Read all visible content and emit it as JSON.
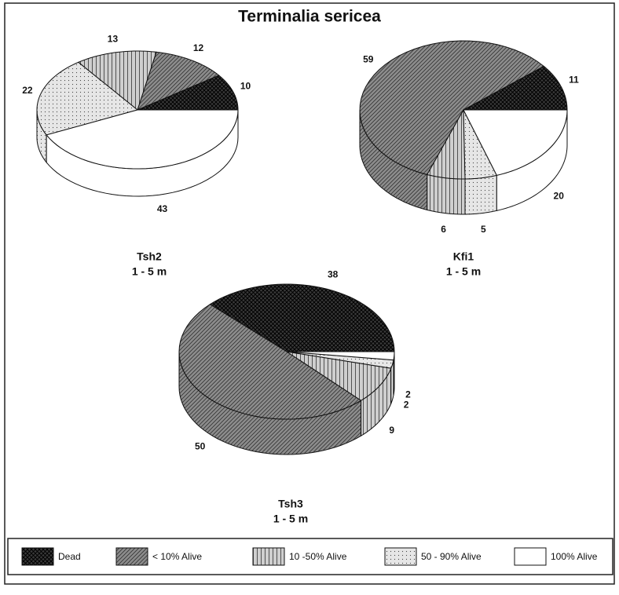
{
  "title": "Terminalia sericea",
  "legend": [
    "Dead",
    "< 10% Alive",
    "10 -50% Alive",
    "50 - 90% Alive",
    "100% Alive"
  ],
  "colors": [
    "#3a3a3a",
    "#8c8c8c",
    "#cfcfcf",
    "#e6e6e6",
    "#ffffff"
  ],
  "chart_data": [
    {
      "type": "pie",
      "title": "Tsh2",
      "subtitle": "1 - 5 m",
      "values": [
        10,
        12,
        13,
        22,
        43
      ]
    },
    {
      "type": "pie",
      "title": "Kfi1",
      "subtitle": "1 - 5 m",
      "values": [
        11,
        59,
        6,
        5,
        20
      ]
    },
    {
      "type": "pie",
      "title": "Tsh3",
      "subtitle": "1 - 5 m",
      "values": [
        38,
        50,
        9,
        2,
        2
      ]
    }
  ]
}
